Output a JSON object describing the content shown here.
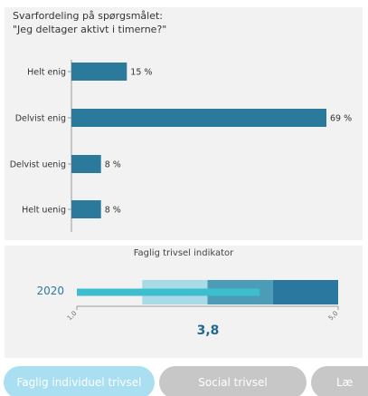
{
  "chart_data": [
    {
      "type": "bar",
      "orientation": "horizontal",
      "title_lines": [
        "Svarfordeling på spørgsmålet:",
        "\"Jeg deltager aktivt i timerne?\""
      ],
      "categories": [
        "Helt enig",
        "Delvist enig",
        "Delvist uenig",
        "Helt uenig"
      ],
      "values": [
        15,
        69,
        8,
        8
      ],
      "value_labels": [
        "15 %",
        "69 %",
        "8 %",
        "8 %"
      ],
      "xlim": [
        0,
        75
      ],
      "grid": false,
      "legend": "none",
      "bar_color": "#2b7a9b"
    },
    {
      "type": "bullet",
      "title": "Faglig trivsel indikator",
      "category": "2020",
      "value": 3.8,
      "value_label": "3,8",
      "xlim": [
        1.0,
        5.0
      ],
      "tick_labels": [
        "1,0",
        "5,0"
      ],
      "bands": [
        {
          "from": 2.0,
          "to": 3.0,
          "color": "#a9dbe6"
        },
        {
          "from": 3.0,
          "to": 4.0,
          "color": "#4c9cb8"
        },
        {
          "from": 4.0,
          "to": 5.0,
          "color": "#2a77a0"
        }
      ],
      "bar_color": "#3cbecf"
    }
  ],
  "tabs": [
    {
      "label": "Faglig individuel trivsel",
      "active": true
    },
    {
      "label": "Social trivsel",
      "active": false
    },
    {
      "label": "Læ",
      "active": false
    }
  ]
}
